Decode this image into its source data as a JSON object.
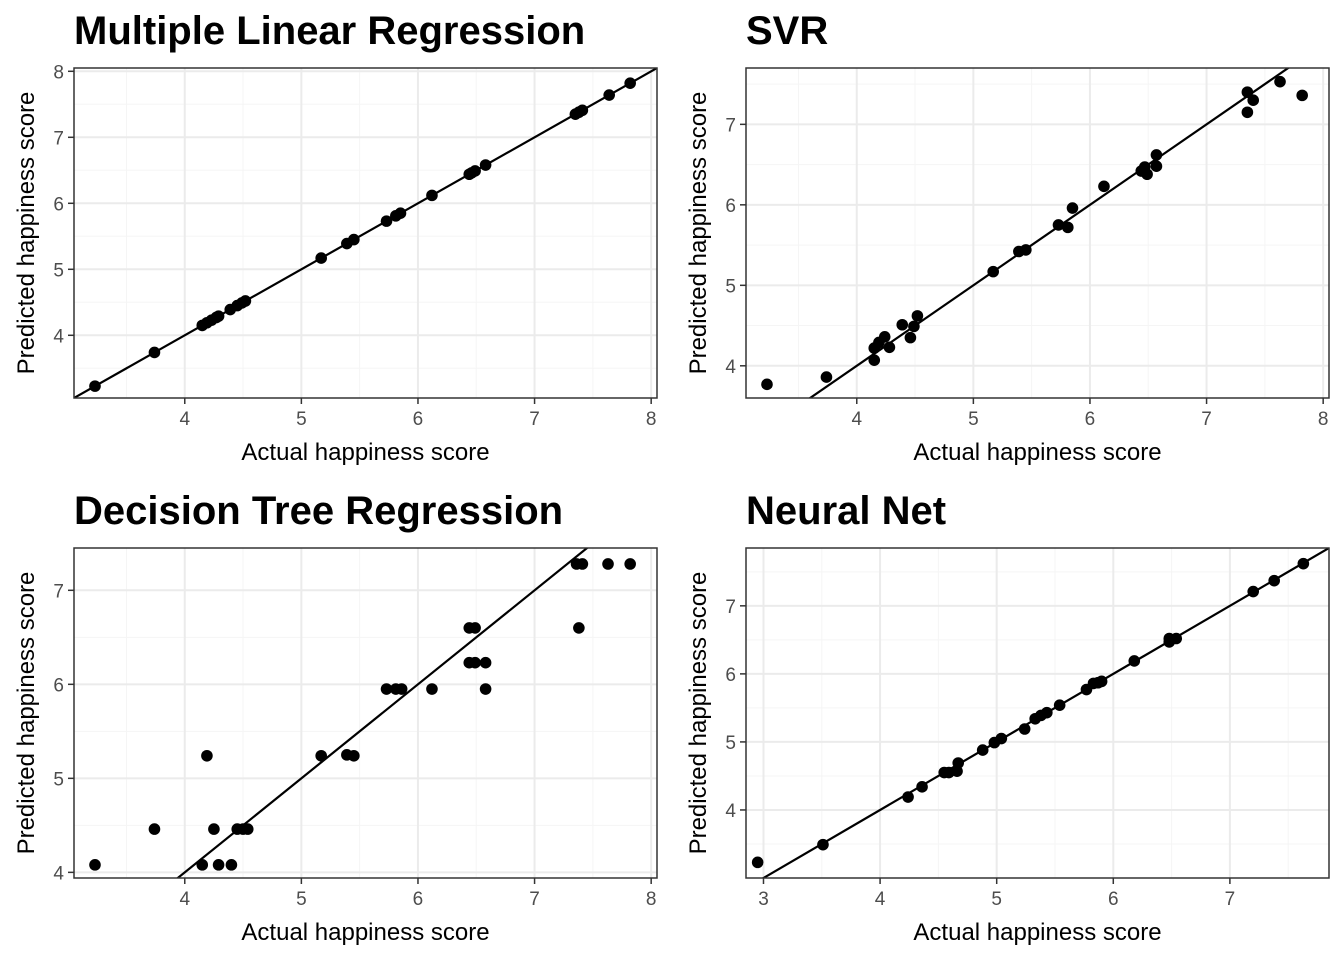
{
  "chart_data": [
    {
      "type": "scatter",
      "title": "Multiple Linear Regression",
      "xlabel": "Actual happiness score",
      "ylabel": "Predicted happiness score",
      "xlim": [
        3.05,
        8.05
      ],
      "ylim": [
        3.05,
        8.05
      ],
      "xticks": [
        4,
        5,
        6,
        7,
        8
      ],
      "yticks": [
        4,
        5,
        6,
        7,
        8
      ],
      "reference_line": {
        "intercept": 0,
        "slope": 1
      },
      "grid": true,
      "points": [
        [
          3.23,
          3.23
        ],
        [
          3.74,
          3.74
        ],
        [
          4.15,
          4.15
        ],
        [
          4.19,
          4.19
        ],
        [
          4.23,
          4.23
        ],
        [
          4.27,
          4.27
        ],
        [
          4.29,
          4.29
        ],
        [
          4.39,
          4.39
        ],
        [
          4.45,
          4.45
        ],
        [
          4.49,
          4.49
        ],
        [
          4.52,
          4.52
        ],
        [
          5.17,
          5.17
        ],
        [
          5.39,
          5.39
        ],
        [
          5.45,
          5.45
        ],
        [
          5.73,
          5.73
        ],
        [
          5.81,
          5.81
        ],
        [
          5.85,
          5.85
        ],
        [
          6.12,
          6.12
        ],
        [
          6.44,
          6.44
        ],
        [
          6.46,
          6.46
        ],
        [
          6.49,
          6.49
        ],
        [
          6.58,
          6.58
        ],
        [
          7.35,
          7.35
        ],
        [
          7.38,
          7.38
        ],
        [
          7.41,
          7.41
        ],
        [
          7.64,
          7.64
        ],
        [
          7.82,
          7.82
        ]
      ]
    },
    {
      "type": "scatter",
      "title": "SVR",
      "xlabel": "Actual happiness score",
      "ylabel": "Predicted happiness score",
      "xlim": [
        3.05,
        8.05
      ],
      "ylim": [
        3.6,
        7.7
      ],
      "xticks": [
        4,
        5,
        6,
        7,
        8
      ],
      "yticks": [
        4,
        5,
        6,
        7
      ],
      "reference_line": {
        "intercept": 0,
        "slope": 1
      },
      "grid": true,
      "points": [
        [
          3.23,
          3.77
        ],
        [
          3.74,
          3.86
        ],
        [
          4.15,
          4.07
        ],
        [
          4.15,
          4.22
        ],
        [
          4.19,
          4.29
        ],
        [
          4.24,
          4.36
        ],
        [
          4.28,
          4.23
        ],
        [
          4.39,
          4.51
        ],
        [
          4.46,
          4.35
        ],
        [
          4.49,
          4.49
        ],
        [
          4.52,
          4.62
        ],
        [
          5.17,
          5.17
        ],
        [
          5.39,
          5.42
        ],
        [
          5.45,
          5.44
        ],
        [
          5.73,
          5.75
        ],
        [
          5.81,
          5.72
        ],
        [
          5.85,
          5.96
        ],
        [
          6.12,
          6.23
        ],
        [
          6.44,
          6.42
        ],
        [
          6.47,
          6.47
        ],
        [
          6.49,
          6.38
        ],
        [
          6.57,
          6.48
        ],
        [
          6.57,
          6.62
        ],
        [
          7.35,
          7.4
        ],
        [
          7.35,
          7.15
        ],
        [
          7.4,
          7.3
        ],
        [
          7.63,
          7.53
        ],
        [
          7.82,
          7.36
        ]
      ]
    },
    {
      "type": "scatter",
      "title": "Decision Tree Regression",
      "xlabel": "Actual happiness score",
      "ylabel": "Predicted happiness score",
      "xlim": [
        3.05,
        8.05
      ],
      "ylim": [
        3.94,
        7.45
      ],
      "xticks": [
        4,
        5,
        6,
        7,
        8
      ],
      "yticks": [
        4,
        5,
        6,
        7
      ],
      "reference_line": {
        "intercept": 0,
        "slope": 1
      },
      "grid": true,
      "points": [
        [
          3.23,
          4.08
        ],
        [
          3.74,
          4.46
        ],
        [
          4.15,
          4.08
        ],
        [
          4.19,
          5.24
        ],
        [
          4.25,
          4.46
        ],
        [
          4.29,
          4.08
        ],
        [
          4.4,
          4.08
        ],
        [
          4.45,
          4.46
        ],
        [
          4.5,
          4.46
        ],
        [
          4.54,
          4.46
        ],
        [
          5.17,
          5.24
        ],
        [
          5.39,
          5.25
        ],
        [
          5.45,
          5.24
        ],
        [
          5.73,
          5.95
        ],
        [
          5.81,
          5.95
        ],
        [
          5.86,
          5.95
        ],
        [
          6.12,
          5.95
        ],
        [
          6.44,
          6.6
        ],
        [
          6.49,
          6.6
        ],
        [
          6.44,
          6.23
        ],
        [
          6.49,
          6.23
        ],
        [
          6.58,
          6.23
        ],
        [
          6.58,
          5.95
        ],
        [
          7.36,
          7.28
        ],
        [
          7.38,
          6.6
        ],
        [
          7.41,
          7.28
        ],
        [
          7.63,
          7.28
        ],
        [
          7.82,
          7.28
        ]
      ]
    },
    {
      "type": "scatter",
      "title": "Neural Net",
      "xlabel": "Actual happiness score",
      "ylabel": "Predicted happiness score",
      "xlim": [
        2.85,
        7.85
      ],
      "ylim": [
        3.0,
        7.85
      ],
      "xticks": [
        3,
        4,
        5,
        6,
        7
      ],
      "yticks": [
        4,
        5,
        6,
        7
      ],
      "reference_line": {
        "intercept": 0,
        "slope": 1
      },
      "grid": true,
      "points": [
        [
          2.95,
          3.23
        ],
        [
          3.51,
          3.49
        ],
        [
          4.24,
          4.19
        ],
        [
          4.36,
          4.34
        ],
        [
          4.55,
          4.55
        ],
        [
          4.59,
          4.55
        ],
        [
          4.66,
          4.57
        ],
        [
          4.67,
          4.69
        ],
        [
          4.88,
          4.88
        ],
        [
          4.98,
          4.99
        ],
        [
          5.04,
          5.05
        ],
        [
          5.24,
          5.19
        ],
        [
          5.33,
          5.34
        ],
        [
          5.38,
          5.39
        ],
        [
          5.43,
          5.43
        ],
        [
          5.54,
          5.54
        ],
        [
          5.77,
          5.77
        ],
        [
          5.83,
          5.86
        ],
        [
          5.87,
          5.87
        ],
        [
          5.9,
          5.89
        ],
        [
          6.18,
          6.19
        ],
        [
          6.48,
          6.47
        ],
        [
          6.48,
          6.52
        ],
        [
          6.54,
          6.52
        ],
        [
          7.2,
          7.21
        ],
        [
          7.38,
          7.37
        ],
        [
          7.63,
          7.62
        ]
      ]
    }
  ]
}
